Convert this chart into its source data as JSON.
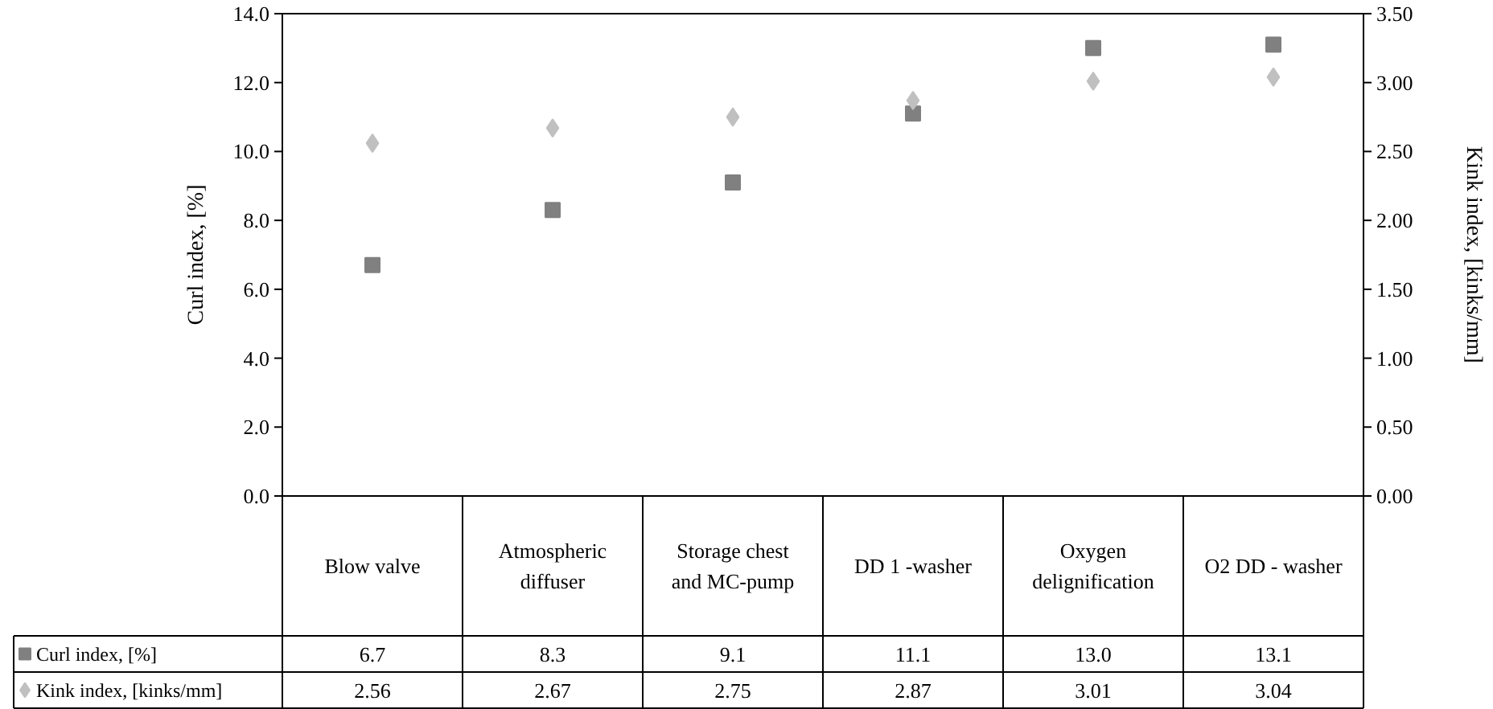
{
  "chart_data": {
    "type": "scatter",
    "categories": [
      "Blow valve",
      "Atmospheric diffuser",
      "Storage chest and MC-pump",
      "DD 1 -washer",
      "Oxygen delignification",
      "O2 DD - washer"
    ],
    "ylabel": "Curl index, [%]",
    "y2label": "Kink index, [kinks/mm]",
    "ylim": [
      0,
      14
    ],
    "yticks": [
      {
        "value": 0,
        "label": "0.0"
      },
      {
        "value": 2,
        "label": "2.0"
      },
      {
        "value": 4,
        "label": "4.0"
      },
      {
        "value": 6,
        "label": "6.0"
      },
      {
        "value": 8,
        "label": "8.0"
      },
      {
        "value": 10,
        "label": "10.0"
      },
      {
        "value": 12,
        "label": "12.0"
      },
      {
        "value": 14,
        "label": "14.0"
      }
    ],
    "y2lim": [
      0,
      3.5
    ],
    "y2ticks": [
      {
        "value": 0,
        "label": "0.00"
      },
      {
        "value": 0.5,
        "label": "0.50"
      },
      {
        "value": 1,
        "label": "1.00"
      },
      {
        "value": 1.5,
        "label": "1.50"
      },
      {
        "value": 2,
        "label": "2.00"
      },
      {
        "value": 2.5,
        "label": "2.50"
      },
      {
        "value": 3,
        "label": "3.00"
      },
      {
        "value": 3.5,
        "label": "3.50"
      }
    ],
    "grid": false,
    "legend": "bottom",
    "series": [
      {
        "name": "Curl index, [%]",
        "color": "#808080",
        "marker": "square",
        "values": [
          6.7,
          8.3,
          9.1,
          11.1,
          13.0,
          13.1
        ],
        "value_labels": [
          "6.7",
          "8.3",
          "9.1",
          "11.1",
          "13.0",
          "13.1"
        ]
      },
      {
        "name": "Kink index, [kinks/mm]",
        "color": "#c0c0c0",
        "marker": "diamond",
        "axis": "y2",
        "values": [
          2.56,
          2.67,
          2.75,
          2.87,
          3.01,
          3.04
        ],
        "value_labels": [
          "2.56",
          "2.67",
          "2.75",
          "2.87",
          "3.01",
          "3.04"
        ]
      }
    ]
  }
}
